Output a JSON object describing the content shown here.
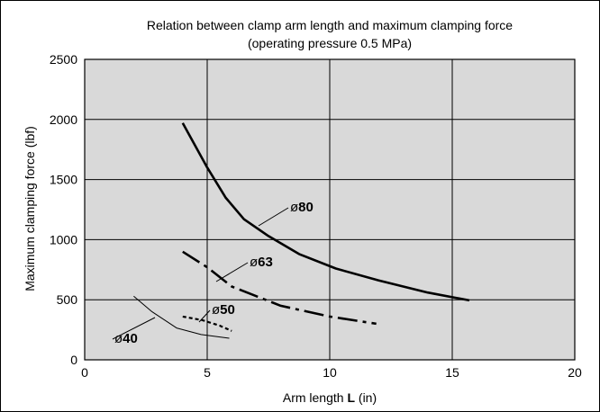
{
  "chart_data": {
    "type": "line",
    "title": "Relation between clamp arm length and maximum clamping force",
    "subtitle": "(operating pressure 0.5 MPa)",
    "xlabel_prefix": "Arm length ",
    "xlabel_bold": "L",
    "xlabel_suffix": " (in)",
    "ylabel": "Maximum clamping force (lbf)",
    "xlim": [
      0,
      20
    ],
    "ylim": [
      0,
      2500
    ],
    "x_ticks": [
      "0",
      "5",
      "10",
      "15",
      "20"
    ],
    "y_ticks": [
      "0",
      "500",
      "1000",
      "1500",
      "2000",
      "2500"
    ],
    "grid": true,
    "series": [
      {
        "name": "80",
        "label_prefix": "ø",
        "style": "solid",
        "stroke_width": 2.6,
        "x": [
          4,
          5,
          5.75,
          6.5,
          7.5,
          8.75,
          10.25,
          12,
          14,
          15.7
        ],
        "y": [
          1970,
          1600,
          1350,
          1170,
          1030,
          880,
          760,
          660,
          560,
          495
        ]
      },
      {
        "name": "63",
        "label_prefix": "ø",
        "style": "dashdot",
        "stroke_width": 2.6,
        "x": [
          4,
          5,
          6,
          7,
          8,
          10,
          11.9
        ],
        "y": [
          900,
          770,
          610,
          530,
          450,
          360,
          300
        ]
      },
      {
        "name": "50",
        "label_prefix": "ø",
        "style": "dotted",
        "stroke_width": 2.2,
        "x": [
          4,
          4.8,
          5.5,
          6
        ],
        "y": [
          360,
          330,
          285,
          240
        ]
      },
      {
        "name": "40",
        "label_prefix": "ø",
        "style": "thin",
        "stroke_width": 1,
        "x": [
          2,
          2.75,
          3.75,
          4.75,
          5.9
        ],
        "y": [
          530,
          400,
          265,
          210,
          180
        ]
      }
    ]
  }
}
